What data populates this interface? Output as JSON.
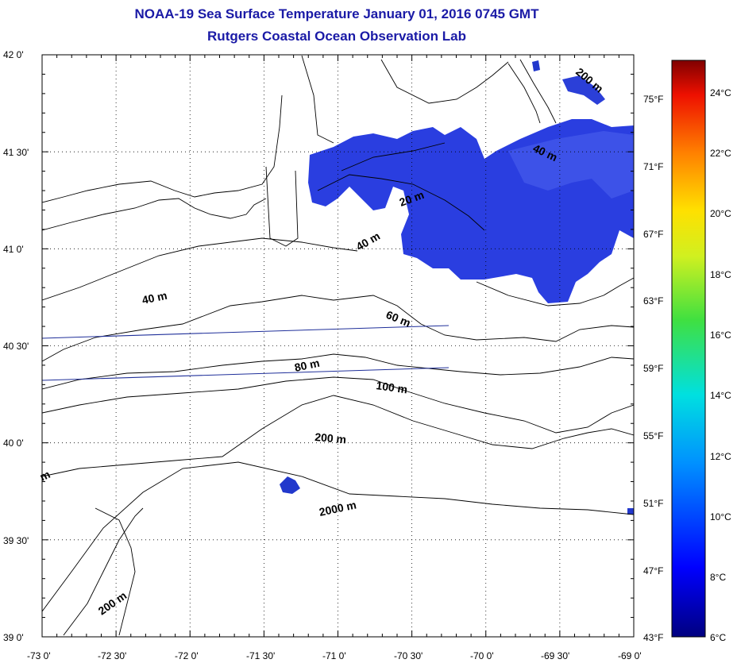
{
  "header": {
    "title": "NOAA-19 Sea Surface Temperature January 01, 2016 0745 GMT",
    "subtitle": "Rutgers Coastal Ocean Observation Lab"
  },
  "map": {
    "lat_ticks": [
      "42 0'",
      "41 30'",
      "41 0'",
      "40 30'",
      "40 0'",
      "39 30'",
      "39 0'"
    ],
    "lon_ticks": [
      "-73 0'",
      "-72 30'",
      "-72 0'",
      "-71 30'",
      "-71 0'",
      "-70 30'",
      "-70 0'",
      "-69 30'",
      "-69 0'"
    ],
    "lat_range": [
      39.0,
      42.0
    ],
    "lon_range": [
      -73.0,
      -69.0
    ],
    "grid": true,
    "isobath_labels": [
      "200 m",
      "40 m",
      "40 m",
      "20 m",
      "60 m",
      "80 m",
      "100 m",
      "200 m",
      "2000 m",
      "200 m",
      "m"
    ],
    "sst_color": "#2a3ee0",
    "land_line_color": "#000000",
    "track_line_color": "#1f2f9a"
  },
  "colorbar": {
    "celsius_labels": [
      "24°C",
      "22°C",
      "20°C",
      "18°C",
      "16°C",
      "14°C",
      "12°C",
      "10°C",
      "8°C",
      "6°C"
    ],
    "fahrenheit_labels": [
      "75°F",
      "71°F",
      "67°F",
      "63°F",
      "59°F",
      "55°F",
      "51°F",
      "47°F",
      "43°F"
    ],
    "range_c": [
      6,
      25
    ]
  }
}
